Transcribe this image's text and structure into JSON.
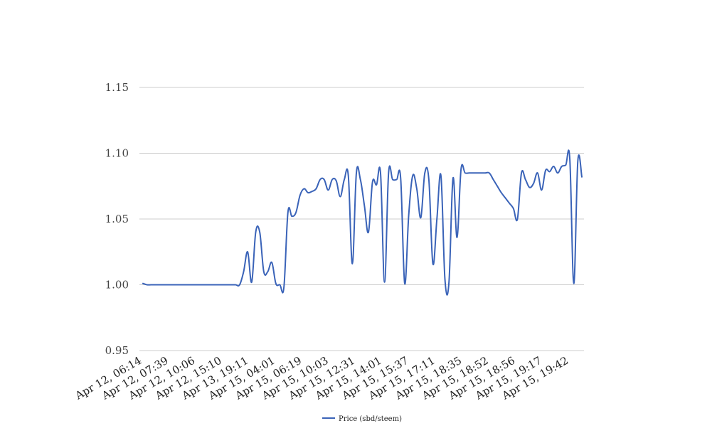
{
  "chart_data": {
    "type": "line",
    "title": "",
    "xlabel": "",
    "ylabel": "",
    "ylim": [
      0.95,
      1.15
    ],
    "y_ticks": [
      "0.95",
      "1.00",
      "1.05",
      "1.10",
      "1.15"
    ],
    "x_tick_labels": [
      "Apr 12, 06:14",
      "Apr 12, 07:39",
      "Apr 12, 10:06",
      "Apr 12, 15:10",
      "Apr 13, 19:11",
      "Apr 15, 04:01",
      "Apr 15, 06:19",
      "Apr 15, 10:03",
      "Apr 15, 12:31",
      "Apr 15, 14:01",
      "Apr 15, 15:37",
      "Apr 15, 17:11",
      "Apr 15, 18:35",
      "Apr 15, 18:52",
      "Apr 15, 18:56",
      "Apr 15, 19:17",
      "Apr 15, 19:42"
    ],
    "grid": true,
    "legend_position": "bottom",
    "series": [
      {
        "name": "Price (sbd/steem)",
        "color": "#3a63b8",
        "values": [
          1.001,
          1.0,
          1.0,
          1.0,
          1.0,
          1.0,
          1.0,
          1.0,
          1.0,
          1.0,
          1.0,
          1.0,
          1.0,
          1.0,
          1.0,
          1.0,
          1.0,
          1.0,
          1.0,
          1.0,
          1.0,
          1.0,
          1.0,
          1.0,
          1.0,
          1.01,
          1.025,
          1.002,
          1.04,
          1.04,
          1.01,
          1.01,
          1.017,
          1.001,
          1.0,
          0.998,
          1.055,
          1.052,
          1.055,
          1.068,
          1.073,
          1.07,
          1.071,
          1.073,
          1.08,
          1.08,
          1.072,
          1.08,
          1.079,
          1.067,
          1.08,
          1.083,
          1.016,
          1.085,
          1.08,
          1.06,
          1.04,
          1.078,
          1.076,
          1.085,
          1.002,
          1.085,
          1.08,
          1.08,
          1.081,
          1.001,
          1.053,
          1.083,
          1.073,
          1.051,
          1.085,
          1.08,
          1.016,
          1.05,
          1.083,
          1.004,
          1.002,
          1.081,
          1.036,
          1.088,
          1.085,
          1.085,
          1.085,
          1.085,
          1.085,
          1.085,
          1.085,
          1.08,
          1.075,
          1.07,
          1.066,
          1.062,
          1.058,
          1.05,
          1.085,
          1.08,
          1.074,
          1.077,
          1.085,
          1.072,
          1.087,
          1.086,
          1.09,
          1.085,
          1.09,
          1.091,
          1.096,
          1.001,
          1.094,
          1.082
        ]
      }
    ]
  }
}
